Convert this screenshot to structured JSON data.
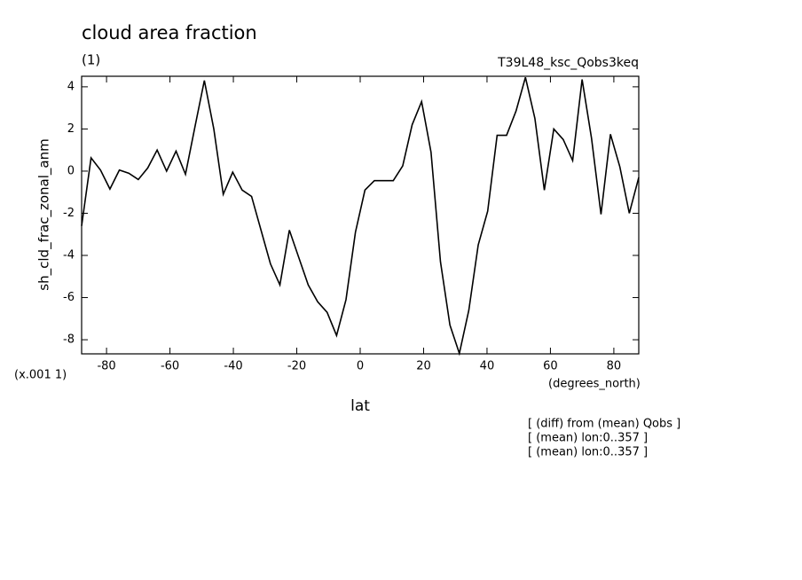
{
  "chart_data": {
    "type": "line",
    "title": "cloud area fraction",
    "subtitle": "(1)",
    "experiment": "T39L48_ksc_Qobs3keq",
    "y_label": "sh_cld_frac_zonal_anm",
    "y_scale_note": "(x.001 1)",
    "x_units": "(degrees_north)",
    "x_label": "lat",
    "notes": [
      "[ (diff) from (mean) Qobs ]",
      "[ (mean) lon:0..357 ]",
      "[ (mean) lon:0..357 ]"
    ],
    "x": [
      -87.86,
      -84.88,
      -81.9,
      -78.93,
      -75.95,
      -72.97,
      -69.99,
      -67.01,
      -64.04,
      -61.06,
      -58.08,
      -55.1,
      -52.12,
      -49.15,
      -46.17,
      -43.19,
      -40.21,
      -37.23,
      -34.26,
      -31.28,
      -28.3,
      -25.32,
      -22.34,
      -19.37,
      -16.39,
      -13.41,
      -10.43,
      -7.45,
      -4.48,
      -1.5,
      1.5,
      4.48,
      7.45,
      10.43,
      13.41,
      16.39,
      19.37,
      22.34,
      25.32,
      28.3,
      31.28,
      34.26,
      37.23,
      40.21,
      43.19,
      46.17,
      49.15,
      52.12,
      55.1,
      58.08,
      61.06,
      64.04,
      67.01,
      69.99,
      72.97,
      75.95,
      78.93,
      81.9,
      84.88,
      87.86
    ],
    "series": [
      {
        "color": "#000000",
        "values": [
          -2.6,
          0.63,
          0.05,
          -0.85,
          0.05,
          -0.1,
          -0.4,
          0.15,
          1.0,
          0,
          0.95,
          -0.15,
          2.1,
          4.3,
          2.0,
          -1.1,
          -0.05,
          -0.9,
          -1.2,
          -2.8,
          -4.4,
          -5.4,
          -2.8,
          -4.1,
          -5.4,
          -6.2,
          -6.7,
          -7.8,
          -6.1,
          -2.9,
          -0.9,
          -0.45,
          -0.45,
          -0.45,
          0.25,
          2.2,
          3.3,
          0.9,
          -4.3,
          -7.3,
          -8.65,
          -6.6,
          -3.5,
          -1.9,
          1.7,
          1.7,
          2.85,
          4.45,
          2.5,
          -0.9,
          2.0,
          1.5,
          0.5,
          4.35,
          1.55,
          -2.05,
          1.75,
          0.2,
          -2.0,
          -0.3
        ]
      }
    ],
    "xlim": [
      -87.86,
      87.86
    ],
    "xticks": [
      -80,
      -60,
      -40,
      -20,
      0,
      20,
      40,
      60,
      80
    ],
    "ylim": [
      -8.67,
      4.5
    ],
    "yticks": [
      -8,
      -6,
      -4,
      -2,
      0,
      2,
      4
    ]
  }
}
